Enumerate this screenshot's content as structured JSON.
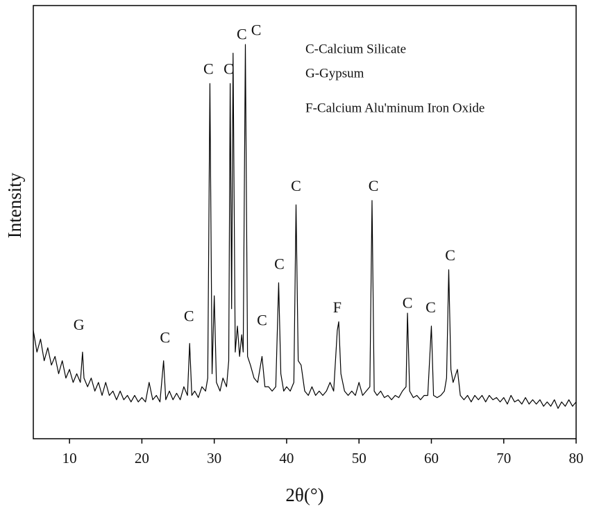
{
  "chart_data": {
    "type": "line",
    "x_label": "2θ(°)",
    "y_label": "Intensity",
    "xlim": [
      5,
      80
    ],
    "xticks": [
      10,
      20,
      30,
      40,
      50,
      60,
      70,
      80
    ],
    "ylim": [
      0,
      100
    ],
    "color": "#000000",
    "x": [
      5.0,
      5.5,
      6.0,
      6.5,
      7.0,
      7.5,
      8.0,
      8.5,
      9.0,
      9.5,
      10.0,
      10.5,
      11.0,
      11.5,
      11.8,
      12.0,
      12.5,
      13.0,
      13.5,
      14.0,
      14.5,
      15.0,
      15.5,
      16.0,
      16.5,
      17.0,
      17.5,
      18.0,
      18.5,
      19.0,
      19.5,
      20.0,
      20.5,
      21.0,
      21.5,
      22.0,
      22.5,
      23.0,
      23.3,
      23.8,
      24.3,
      24.8,
      25.3,
      25.8,
      26.3,
      26.6,
      26.9,
      27.3,
      27.8,
      28.3,
      28.8,
      29.1,
      29.4,
      29.7,
      30.0,
      30.3,
      30.8,
      31.2,
      31.7,
      32.0,
      32.2,
      32.4,
      32.6,
      32.9,
      33.2,
      33.5,
      33.8,
      34.0,
      34.3,
      34.6,
      35.0,
      35.5,
      36.0,
      36.6,
      37.0,
      37.5,
      38.0,
      38.5,
      38.9,
      39.2,
      39.6,
      40.0,
      40.5,
      41.0,
      41.3,
      41.6,
      42.0,
      42.5,
      43.0,
      43.5,
      44.0,
      44.5,
      45.0,
      45.5,
      46.0,
      46.5,
      47.0,
      47.2,
      47.5,
      48.0,
      48.5,
      49.0,
      49.5,
      50.0,
      50.5,
      51.0,
      51.5,
      51.8,
      52.1,
      52.5,
      53.0,
      53.5,
      54.0,
      54.5,
      55.0,
      55.5,
      56.0,
      56.5,
      56.7,
      57.0,
      57.5,
      58.0,
      58.5,
      59.0,
      59.5,
      60.0,
      60.3,
      60.8,
      61.3,
      61.8,
      62.1,
      62.4,
      62.7,
      63.0,
      63.6,
      64.0,
      64.5,
      65.0,
      65.5,
      66.0,
      66.5,
      67.0,
      67.5,
      68.0,
      68.5,
      69.0,
      69.5,
      70.0,
      70.5,
      71.0,
      71.5,
      72.0,
      72.5,
      73.0,
      73.5,
      74.0,
      74.5,
      75.0,
      75.5,
      76.0,
      76.5,
      77.0,
      77.5,
      78.0,
      78.5,
      79.0,
      79.5,
      80.0
    ],
    "values": [
      25,
      20,
      23,
      18,
      21,
      17,
      19,
      15,
      18,
      14,
      16,
      13,
      15,
      13,
      20,
      14,
      12,
      14,
      11,
      13,
      10,
      13,
      10,
      11,
      9,
      11,
      9,
      10,
      8.5,
      10,
      8.5,
      9.5,
      8.5,
      13,
      9,
      10,
      8.5,
      18,
      9,
      11,
      9,
      10.5,
      9,
      12,
      10,
      22,
      10,
      11,
      9.5,
      12,
      11,
      14,
      82,
      15,
      33,
      13,
      11,
      14,
      12,
      18,
      82,
      30,
      89,
      20,
      26,
      19,
      24,
      20,
      91,
      19,
      17,
      14,
      13,
      19,
      12,
      12,
      11,
      12,
      36,
      15,
      11,
      12,
      11,
      13,
      54,
      18,
      17,
      11,
      10,
      12,
      10,
      11,
      10,
      11,
      13,
      11,
      25,
      27,
      15,
      11,
      10,
      11,
      10,
      13,
      10,
      11,
      12,
      55,
      11,
      10,
      11,
      9.5,
      10,
      9,
      10,
      9.5,
      11,
      12,
      29,
      11,
      9.5,
      10,
      9,
      10,
      10,
      26,
      10,
      9.5,
      10,
      11,
      14,
      39,
      16,
      13,
      16,
      10,
      9,
      10,
      8.5,
      10,
      9,
      10,
      8.5,
      10,
      9,
      9.5,
      8.5,
      9.5,
      8,
      10,
      8.5,
      9,
      8,
      9.5,
      8,
      9,
      8,
      9,
      7.5,
      8.5,
      7.5,
      9,
      7,
      8.5,
      7.5,
      9,
      7.5,
      8.5
    ],
    "annotations": [
      {
        "text": "G",
        "x": 11.3,
        "y": 26
      },
      {
        "text": "C",
        "x": 23.2,
        "y": 23
      },
      {
        "text": "C",
        "x": 26.5,
        "y": 28
      },
      {
        "text": "C",
        "x": 29.2,
        "y": 85
      },
      {
        "text": "C",
        "x": 32.0,
        "y": 85
      },
      {
        "text": "C",
        "x": 33.8,
        "y": 93
      },
      {
        "text": "C",
        "x": 35.8,
        "y": 94
      },
      {
        "text": "C",
        "x": 36.6,
        "y": 27
      },
      {
        "text": "C",
        "x": 39.0,
        "y": 40
      },
      {
        "text": "C",
        "x": 41.3,
        "y": 58
      },
      {
        "text": "F",
        "x": 47.0,
        "y": 30,
        "color": "#1f3a8a"
      },
      {
        "text": "C",
        "x": 52.0,
        "y": 58
      },
      {
        "text": "C",
        "x": 56.7,
        "y": 31
      },
      {
        "text": "C",
        "x": 59.9,
        "y": 30
      },
      {
        "text": "C",
        "x": 62.6,
        "y": 42
      }
    ],
    "legend_notes": [
      "C-Calcium Silicate",
      "G-Gypsum",
      "F-Calcium Alu'minum Iron Oxide"
    ]
  }
}
